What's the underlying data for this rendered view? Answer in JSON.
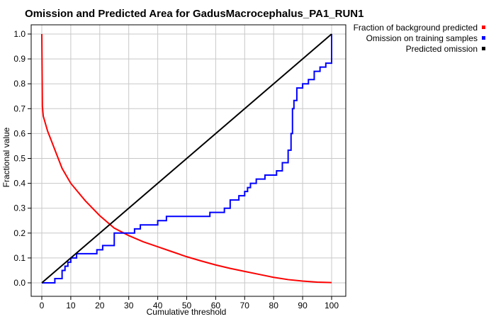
{
  "chart_data": {
    "type": "line",
    "title": "Omission and Predicted Area for GadusMacrocephalus_PA1_RUN1",
    "xlabel": "Cumulative threshold",
    "ylabel": "Fractional value",
    "xlim": [
      0,
      100
    ],
    "ylim": [
      0,
      1
    ],
    "xticks": [
      "0",
      "10",
      "20",
      "30",
      "40",
      "50",
      "60",
      "70",
      "80",
      "90",
      "100"
    ],
    "yticks": [
      "0.0",
      "0.1",
      "0.2",
      "0.3",
      "0.4",
      "0.5",
      "0.6",
      "0.7",
      "0.8",
      "0.9",
      "1.0"
    ],
    "grid": true,
    "legend_position": "top-right, outside plot",
    "series": [
      {
        "name": "Fraction of background predicted",
        "color": "#ff0000",
        "x": [
          0,
          0.2,
          0.5,
          1,
          2,
          3,
          5,
          7,
          10,
          15,
          20,
          25,
          30,
          35,
          40,
          45,
          50,
          55,
          60,
          65,
          70,
          75,
          80,
          85,
          90,
          95,
          100
        ],
        "y": [
          1.0,
          0.71,
          0.67,
          0.65,
          0.61,
          0.58,
          0.52,
          0.46,
          0.4,
          0.33,
          0.27,
          0.22,
          0.19,
          0.165,
          0.145,
          0.125,
          0.105,
          0.088,
          0.072,
          0.058,
          0.046,
          0.034,
          0.022,
          0.013,
          0.007,
          0.003,
          0.001
        ],
        "step": false
      },
      {
        "name": "Omission on training samples",
        "color": "#0000ff",
        "x": [
          0,
          4.5,
          7,
          8,
          9,
          10,
          12,
          15,
          19,
          21,
          25,
          28,
          32,
          34,
          40,
          43,
          53,
          58,
          63,
          65,
          68,
          70,
          71,
          72,
          74,
          77,
          81,
          83,
          85,
          86,
          86.5,
          87,
          88,
          90,
          92,
          94,
          96,
          98,
          100,
          100
        ],
        "y": [
          0.0,
          0.017,
          0.05,
          0.067,
          0.083,
          0.1,
          0.117,
          0.117,
          0.133,
          0.15,
          0.2,
          0.2,
          0.217,
          0.233,
          0.25,
          0.267,
          0.267,
          0.283,
          0.3,
          0.333,
          0.35,
          0.367,
          0.383,
          0.4,
          0.417,
          0.433,
          0.45,
          0.483,
          0.533,
          0.6,
          0.7,
          0.733,
          0.783,
          0.8,
          0.817,
          0.85,
          0.867,
          0.883,
          0.9,
          1.0
        ],
        "step": true
      },
      {
        "name": "Predicted omission",
        "color": "#000000",
        "x": [
          0,
          100
        ],
        "y": [
          0,
          1
        ],
        "step": false
      }
    ]
  }
}
